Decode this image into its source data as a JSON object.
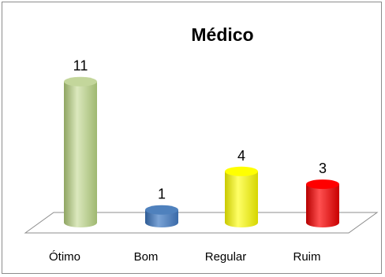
{
  "chart_data": {
    "type": "bar",
    "title": "Médico",
    "categories": [
      "Ótimo",
      "Bom",
      "Regular",
      "Ruim"
    ],
    "values": [
      11,
      1,
      4,
      3
    ],
    "data_labels": [
      "11",
      "1",
      "4",
      "3"
    ],
    "colors": [
      "#c3d69b",
      "#4f81bd",
      "#ffff00",
      "#ff0000"
    ],
    "xlabel": "",
    "ylabel": "",
    "grid": false,
    "legend": "none",
    "style": "3d-cylinder"
  }
}
